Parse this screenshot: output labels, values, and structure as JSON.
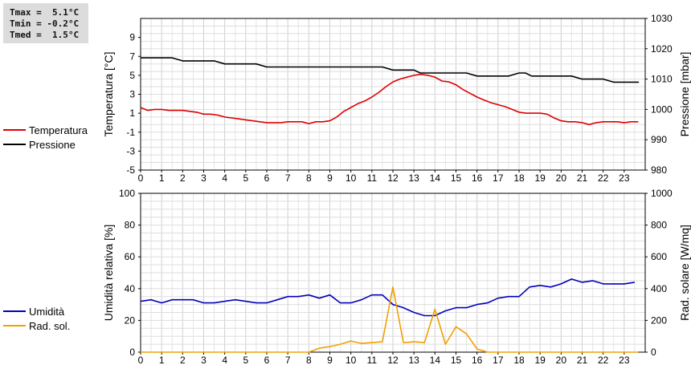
{
  "stats": {
    "tmax": "Tmax =  5.1°C",
    "tmin": "Tmin = -0.2°C",
    "tmed": "Tmed =  1.5°C"
  },
  "legend_top": [
    {
      "label": "Temperatura",
      "color": "#dd0000"
    },
    {
      "label": "Pressione",
      "color": "#000000"
    }
  ],
  "legend_bottom": [
    {
      "label": "Umidità",
      "color": "#0000bb"
    },
    {
      "label": "Rad. sol.",
      "color": "#f0a000"
    }
  ],
  "chart_data": [
    {
      "type": "line",
      "ylabel_left": "Temperatura [°C]",
      "ylabel_right": "Pressione [mbar]",
      "xlim": [
        0,
        24
      ],
      "x_ticks": [
        "0",
        "1",
        "2",
        "3",
        "4",
        "5",
        "6",
        "7",
        "8",
        "9",
        "10",
        "11",
        "12",
        "13",
        "14",
        "15",
        "16",
        "17",
        "18",
        "19",
        "20",
        "21",
        "22",
        "23"
      ],
      "ylim_left": [
        -5,
        11
      ],
      "y_ticks_left": [
        "-5",
        "-3",
        "-1",
        "1",
        "3",
        "5",
        "7",
        "9"
      ],
      "ylim_right": [
        980,
        1030
      ],
      "y_ticks_right": [
        "980",
        "990",
        "1000",
        "1010",
        "1020",
        "1030"
      ],
      "grid": true,
      "series": [
        {
          "name": "Temperatura",
          "axis": "left",
          "color": "#dd0000",
          "x": [
            0,
            0.33,
            0.67,
            1,
            1.33,
            1.67,
            2,
            2.33,
            2.67,
            3,
            3.33,
            3.67,
            4,
            4.33,
            4.67,
            5,
            5.33,
            5.67,
            6,
            6.33,
            6.67,
            7,
            7.33,
            7.67,
            8,
            8.33,
            8.67,
            9,
            9.33,
            9.67,
            10,
            10.33,
            10.67,
            11,
            11.33,
            11.67,
            12,
            12.33,
            12.67,
            13,
            13.33,
            13.67,
            14,
            14.33,
            14.67,
            15,
            15.33,
            15.67,
            16,
            16.33,
            16.67,
            17,
            17.33,
            17.67,
            18,
            18.33,
            18.67,
            19,
            19.33,
            19.67,
            20,
            20.33,
            20.67,
            21,
            21.33,
            21.67,
            22,
            22.33,
            22.67,
            23,
            23.33,
            23.67
          ],
          "y": [
            1.6,
            1.3,
            1.4,
            1.4,
            1.3,
            1.3,
            1.3,
            1.2,
            1.1,
            0.9,
            0.9,
            0.8,
            0.6,
            0.5,
            0.4,
            0.3,
            0.2,
            0.1,
            0.0,
            0.0,
            0.0,
            0.1,
            0.1,
            0.1,
            -0.1,
            0.1,
            0.1,
            0.2,
            0.6,
            1.2,
            1.6,
            2.0,
            2.3,
            2.7,
            3.2,
            3.8,
            4.3,
            4.6,
            4.8,
            5.0,
            5.1,
            5.0,
            4.8,
            4.4,
            4.3,
            4.0,
            3.5,
            3.1,
            2.7,
            2.4,
            2.1,
            1.9,
            1.7,
            1.4,
            1.1,
            1.0,
            1.0,
            1.0,
            0.9,
            0.5,
            0.2,
            0.1,
            0.1,
            0.0,
            -0.2,
            0.0,
            0.1,
            0.1,
            0.1,
            0.0,
            0.1,
            0.1
          ]
        },
        {
          "name": "Pressione",
          "axis": "right",
          "color": "#000000",
          "x": [
            0,
            1.5,
            2,
            3.5,
            4,
            5.5,
            6,
            11.5,
            12,
            13,
            13.3,
            15,
            15.5,
            16,
            17.5,
            18,
            18.3,
            18.6,
            20,
            20.5,
            21,
            22,
            22.5,
            23.7
          ],
          "y": [
            1017,
            1017,
            1016,
            1016,
            1015,
            1015,
            1014,
            1014,
            1013,
            1013,
            1012,
            1012,
            1012,
            1011,
            1011,
            1012,
            1012,
            1011,
            1011,
            1011,
            1010,
            1010,
            1009,
            1009
          ]
        }
      ]
    },
    {
      "type": "line",
      "ylabel_left": "Umidità relativa [%]",
      "ylabel_right": "Rad. solare [W/mq]",
      "xlim": [
        0,
        24
      ],
      "x_ticks": [
        "0",
        "1",
        "2",
        "3",
        "4",
        "5",
        "6",
        "7",
        "8",
        "9",
        "10",
        "11",
        "12",
        "13",
        "14",
        "15",
        "16",
        "17",
        "18",
        "19",
        "20",
        "21",
        "22",
        "23"
      ],
      "ylim_left": [
        0,
        100
      ],
      "y_ticks_left": [
        "0",
        "20",
        "40",
        "60",
        "80",
        "100"
      ],
      "ylim_right": [
        0,
        1000
      ],
      "y_ticks_right": [
        "0",
        "200",
        "400",
        "600",
        "800",
        "1000"
      ],
      "grid": true,
      "series": [
        {
          "name": "Umidità",
          "axis": "left",
          "color": "#0000bb",
          "x": [
            0,
            0.5,
            1,
            1.5,
            2,
            2.5,
            3,
            3.5,
            4,
            4.5,
            5,
            5.5,
            6,
            6.5,
            7,
            7.5,
            8,
            8.5,
            9,
            9.5,
            10,
            10.5,
            11,
            11.5,
            12,
            12.5,
            13,
            13.5,
            14,
            14.5,
            15,
            15.5,
            16,
            16.5,
            17,
            17.5,
            18,
            18.5,
            19,
            19.5,
            20,
            20.5,
            21,
            21.5,
            22,
            22.5,
            23,
            23.5
          ],
          "y": [
            32,
            33,
            31,
            33,
            33,
            33,
            31,
            31,
            32,
            33,
            32,
            31,
            31,
            33,
            35,
            35,
            36,
            34,
            36,
            31,
            31,
            33,
            36,
            36,
            30,
            28,
            25,
            23,
            23,
            26,
            28,
            28,
            30,
            31,
            34,
            35,
            35,
            41,
            42,
            41,
            43,
            46,
            44,
            45,
            43,
            43,
            43,
            44
          ]
        },
        {
          "name": "Rad. sol.",
          "axis": "right",
          "color": "#f0a000",
          "x": [
            0,
            1,
            2,
            3,
            4,
            5,
            6,
            7,
            8,
            8.5,
            9,
            9.5,
            10,
            10.5,
            11,
            11.5,
            12,
            12.5,
            13,
            13.5,
            14,
            14.5,
            15,
            15.5,
            16,
            16.5,
            17,
            18,
            19,
            20,
            21,
            22,
            23,
            23.67
          ],
          "y": [
            0,
            0,
            0,
            0,
            0,
            0,
            0,
            0,
            0,
            25,
            35,
            50,
            70,
            55,
            60,
            65,
            410,
            60,
            65,
            60,
            270,
            50,
            160,
            115,
            20,
            0,
            0,
            0,
            0,
            0,
            0,
            0,
            0,
            0
          ]
        }
      ]
    }
  ]
}
